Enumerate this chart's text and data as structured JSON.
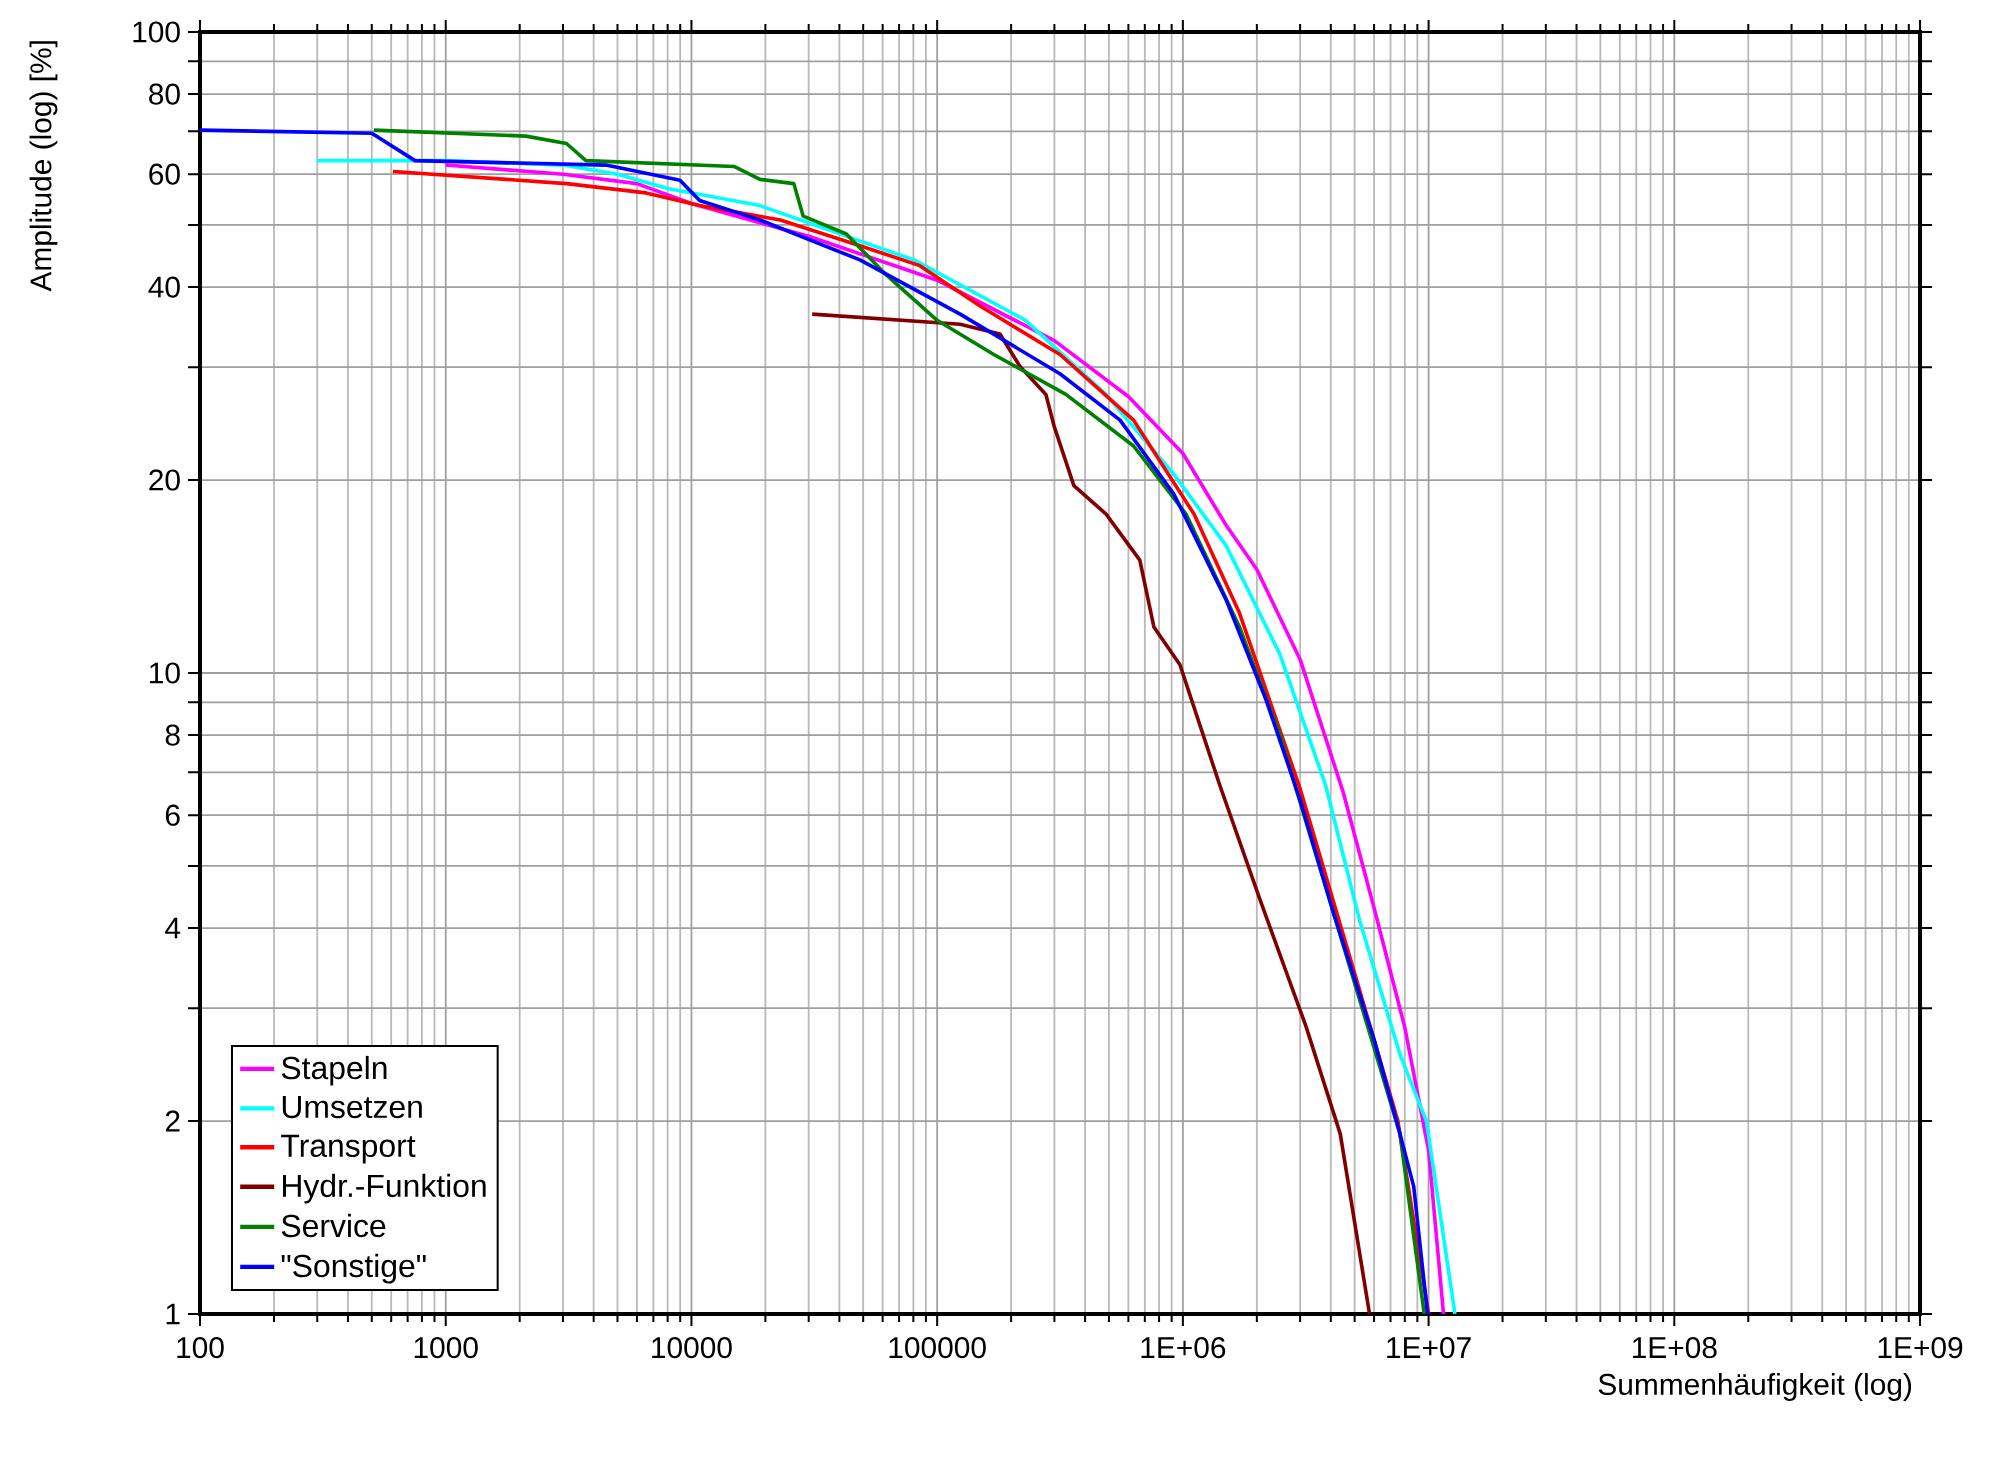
{
  "chart_data": {
    "type": "line",
    "xlabel": "Summenhäufigkeit (log)",
    "ylabel": "Amplitude (log) [%]",
    "log": "xy",
    "grid": true,
    "legend": "bottom left",
    "marker": "none",
    "line_style": "solid",
    "xlim": [
      100,
      1000000000
    ],
    "ylim": [
      1,
      100
    ],
    "xticks": [
      100,
      1000,
      10000,
      100000,
      {
        "value": 1000000,
        "label": "1E+06"
      },
      {
        "value": 10000000,
        "label": "1E+07"
      },
      {
        "value": 100000000,
        "label": "1E+08"
      },
      {
        "value": 1000000000,
        "label": "1E+09"
      }
    ],
    "yticks": [
      1,
      2,
      {
        "value": 3,
        "label": null
      },
      4,
      {
        "value": 5,
        "label": null
      },
      6,
      {
        "value": 7,
        "label": null
      },
      8,
      {
        "value": 9,
        "label": null
      },
      10,
      20,
      {
        "value": 30,
        "label": null
      },
      40,
      {
        "value": 50,
        "label": null
      },
      60,
      {
        "value": 70,
        "label": null
      },
      80,
      {
        "value": 90,
        "label": null
      },
      100
    ],
    "series": [
      {
        "name": "Stapeln",
        "color": "#ff00ff",
        "x": [
          1000,
          3000,
          6000,
          10000,
          30000,
          100000,
          300000,
          600000,
          1000000,
          1500000,
          2000000,
          3000000,
          4500000,
          6000000,
          8000000,
          10000000,
          11500000
        ],
        "values": [
          62,
          60,
          58,
          54,
          48,
          41,
          33,
          27,
          22,
          17,
          14.5,
          10.5,
          6.5,
          4.3,
          2.8,
          1.8,
          1
        ]
      },
      {
        "name": "Umsetzen",
        "color": "#00ffff",
        "x": [
          300,
          1000,
          3000,
          5000,
          8000,
          19000,
          50000,
          80500,
          229000,
          486000,
          920000,
          1500000,
          2480000,
          3800000,
          5250000,
          7650000,
          9800000,
          12800000
        ],
        "values": [
          63,
          63,
          62,
          60,
          57,
          53.6,
          47,
          44.1,
          35.5,
          27.2,
          20.4,
          15.8,
          10.7,
          6.7,
          4.1,
          2.54,
          2,
          1
        ]
      },
      {
        "name": "Transport",
        "color": "#ff0000",
        "x": [
          610,
          3100,
          6530,
          10800,
          23000,
          48500,
          85000,
          149000,
          316000,
          630000,
          1110000,
          1700000,
          3000000,
          5000000,
          7500000,
          10000000
        ],
        "values": [
          60.6,
          58,
          56.1,
          53.6,
          50.9,
          46.4,
          43.2,
          37.4,
          31.4,
          24.8,
          17.7,
          12.4,
          6.6,
          3.4,
          2,
          1
        ]
      },
      {
        "name": "Hydr.-Funktion",
        "color": "#800000",
        "x": [
          31000,
          124000,
          180000,
          217000,
          277000,
          299000,
          360000,
          487000,
          668000,
          762000,
          973000,
          1410000,
          2060000,
          3170000,
          4370000,
          5750000
        ],
        "values": [
          36.3,
          35,
          33.8,
          30.1,
          27.2,
          24.3,
          19.6,
          17.7,
          15,
          11.8,
          10.3,
          6.7,
          4.43,
          2.81,
          1.91,
          1
        ]
      },
      {
        "name": "Service",
        "color": "#008000",
        "x": [
          510,
          2120,
          3100,
          3720,
          14900,
          19000,
          26100,
          28500,
          42700,
          61600,
          100000,
          170000,
          334000,
          630000,
          1030000,
          1700000,
          2480000,
          4120000,
          6000000,
          7650000,
          9600000
        ],
        "values": [
          70.3,
          68.8,
          67,
          63,
          61.7,
          58.9,
          58,
          51.6,
          48.4,
          41.9,
          35.5,
          31.4,
          27.2,
          22.6,
          17.7,
          11.8,
          8,
          4.2,
          null,
          1.91,
          1
        ]
      },
      {
        "name": "\"Sonstige\"",
        "color": "#0000ff",
        "x": [
          100,
          500,
          750,
          4490,
          8980,
          10800,
          19000,
          48500,
          124000,
          316000,
          555000,
          920000,
          1500000,
          2180000,
          3000000,
          4120000,
          6000000,
          7650000,
          8700000,
          9900000
        ],
        "values": [
          70.3,
          69.5,
          63,
          62,
          58.7,
          54.6,
          50.9,
          44.1,
          36.3,
          29.3,
          24.8,
          19,
          13,
          9.08,
          6.34,
          4.2,
          2.68,
          1.91,
          1.58,
          1
        ]
      }
    ]
  }
}
